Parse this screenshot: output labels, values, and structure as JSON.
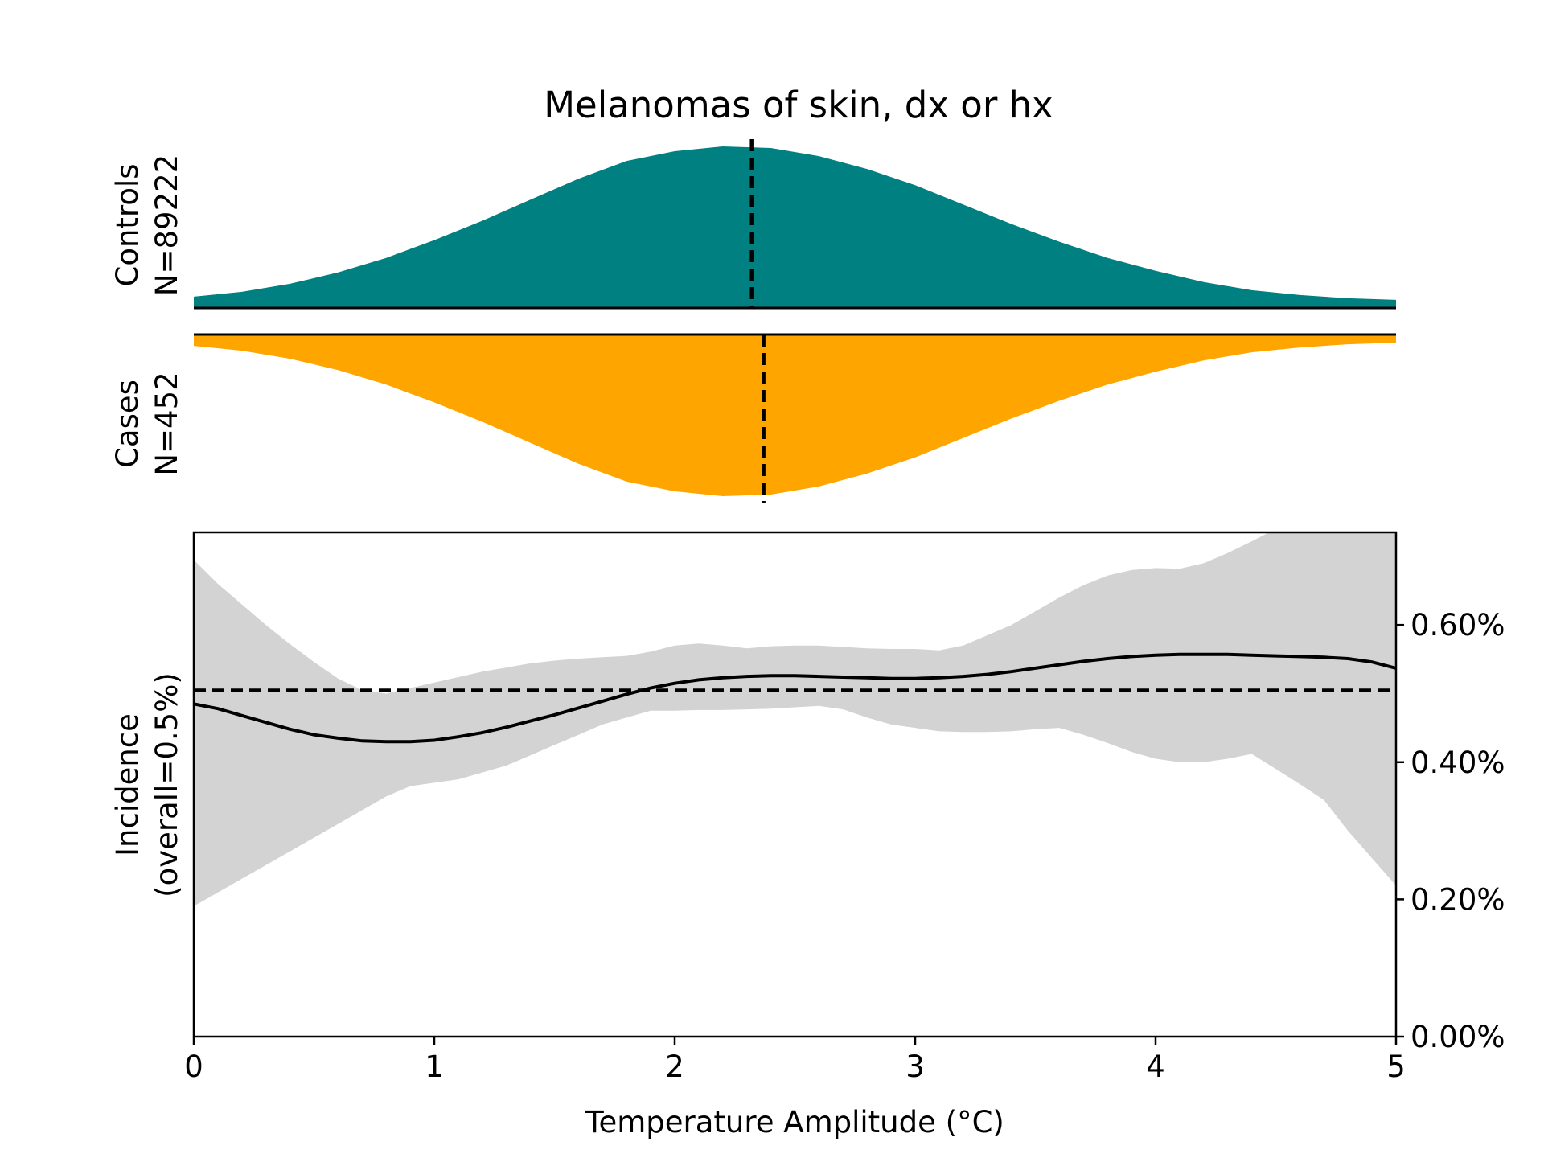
{
  "chart_data": [
    {
      "type": "area",
      "panel": "controls-density",
      "title": "Melanomas of skin, dx or hx",
      "ylabel_lines": [
        "Controls",
        "N=89222"
      ],
      "color": "#008080",
      "median_x": 2.32,
      "x": [
        0,
        0.2,
        0.4,
        0.6,
        0.8,
        1.0,
        1.2,
        1.4,
        1.6,
        1.8,
        2.0,
        2.2,
        2.4,
        2.6,
        2.8,
        3.0,
        3.2,
        3.4,
        3.6,
        3.8,
        4.0,
        4.2,
        4.4,
        4.6,
        4.8,
        5.0
      ],
      "y": [
        0.07,
        0.1,
        0.15,
        0.22,
        0.31,
        0.42,
        0.54,
        0.67,
        0.8,
        0.91,
        0.97,
        1.0,
        0.99,
        0.94,
        0.86,
        0.76,
        0.64,
        0.52,
        0.41,
        0.31,
        0.23,
        0.16,
        0.11,
        0.08,
        0.06,
        0.05
      ]
    },
    {
      "type": "area",
      "panel": "cases-density",
      "ylabel_lines": [
        "Cases",
        "N=452"
      ],
      "color": "#FFA500",
      "median_x": 2.37,
      "x": [
        0,
        0.2,
        0.4,
        0.6,
        0.8,
        1.0,
        1.2,
        1.4,
        1.6,
        1.8,
        2.0,
        2.2,
        2.4,
        2.6,
        2.8,
        3.0,
        3.2,
        3.4,
        3.6,
        3.8,
        4.0,
        4.2,
        4.4,
        4.6,
        4.8,
        5.0
      ],
      "y": [
        0.07,
        0.1,
        0.15,
        0.22,
        0.31,
        0.42,
        0.54,
        0.67,
        0.8,
        0.91,
        0.97,
        1.0,
        0.99,
        0.94,
        0.86,
        0.76,
        0.64,
        0.52,
        0.41,
        0.31,
        0.23,
        0.16,
        0.11,
        0.08,
        0.06,
        0.05
      ]
    },
    {
      "type": "line",
      "panel": "incidence",
      "xlabel": "Temperature Amplitude (°C)",
      "ylabel_lines": [
        "Incidence",
        "(overall=0.5%)"
      ],
      "xlim": [
        0,
        5
      ],
      "ylim": [
        0,
        0.735
      ],
      "xticks": [
        0,
        1,
        2,
        3,
        4,
        5
      ],
      "xtick_labels": [
        "0",
        "1",
        "2",
        "3",
        "4",
        "5"
      ],
      "yticks": [
        0,
        0.2,
        0.4,
        0.6
      ],
      "ytick_labels": [
        "0.00%",
        "0.20%",
        "0.40%",
        "0.60%"
      ],
      "overall_rate": 0.505,
      "ci_color": "#d3d3d3",
      "x": [
        0,
        0.1,
        0.2,
        0.3,
        0.4,
        0.5,
        0.6,
        0.7,
        0.8,
        0.9,
        1.0,
        1.1,
        1.2,
        1.3,
        1.4,
        1.5,
        1.6,
        1.7,
        1.8,
        1.9,
        2.0,
        2.1,
        2.2,
        2.3,
        2.4,
        2.5,
        2.6,
        2.7,
        2.8,
        2.9,
        3.0,
        3.1,
        3.2,
        3.3,
        3.4,
        3.5,
        3.6,
        3.7,
        3.8,
        3.9,
        4.0,
        4.1,
        4.2,
        4.3,
        4.4,
        4.5,
        4.6,
        4.7,
        4.8,
        4.9,
        5.0
      ],
      "estimate": [
        0.485,
        0.478,
        0.468,
        0.458,
        0.448,
        0.44,
        0.435,
        0.431,
        0.43,
        0.43,
        0.432,
        0.437,
        0.443,
        0.451,
        0.46,
        0.469,
        0.479,
        0.489,
        0.499,
        0.508,
        0.515,
        0.52,
        0.523,
        0.525,
        0.526,
        0.526,
        0.525,
        0.524,
        0.523,
        0.522,
        0.522,
        0.523,
        0.525,
        0.528,
        0.532,
        0.537,
        0.542,
        0.547,
        0.551,
        0.554,
        0.556,
        0.557,
        0.557,
        0.557,
        0.556,
        0.555,
        0.554,
        0.553,
        0.551,
        0.546,
        0.537
      ],
      "ci_lower": [
        0.19,
        0.21,
        0.23,
        0.25,
        0.27,
        0.29,
        0.31,
        0.33,
        0.35,
        0.365,
        0.37,
        0.375,
        0.385,
        0.395,
        0.41,
        0.425,
        0.44,
        0.455,
        0.465,
        0.475,
        0.475,
        0.476,
        0.476,
        0.477,
        0.478,
        0.48,
        0.482,
        0.477,
        0.465,
        0.455,
        0.45,
        0.445,
        0.444,
        0.444,
        0.445,
        0.448,
        0.45,
        0.44,
        0.428,
        0.415,
        0.405,
        0.4,
        0.4,
        0.405,
        0.412,
        0.39,
        0.368,
        0.345,
        0.3,
        0.26,
        0.22
      ],
      "ci_upper": [
        0.695,
        0.66,
        0.63,
        0.6,
        0.572,
        0.546,
        0.522,
        0.505,
        0.5,
        0.508,
        0.516,
        0.524,
        0.532,
        0.538,
        0.544,
        0.548,
        0.551,
        0.553,
        0.555,
        0.561,
        0.57,
        0.573,
        0.57,
        0.566,
        0.569,
        0.57,
        0.57,
        0.568,
        0.566,
        0.565,
        0.565,
        0.563,
        0.57,
        0.585,
        0.6,
        0.62,
        0.64,
        0.658,
        0.672,
        0.68,
        0.683,
        0.682,
        0.69,
        0.705,
        0.722,
        0.74,
        0.74,
        0.74,
        0.74,
        0.74,
        0.74
      ]
    }
  ]
}
